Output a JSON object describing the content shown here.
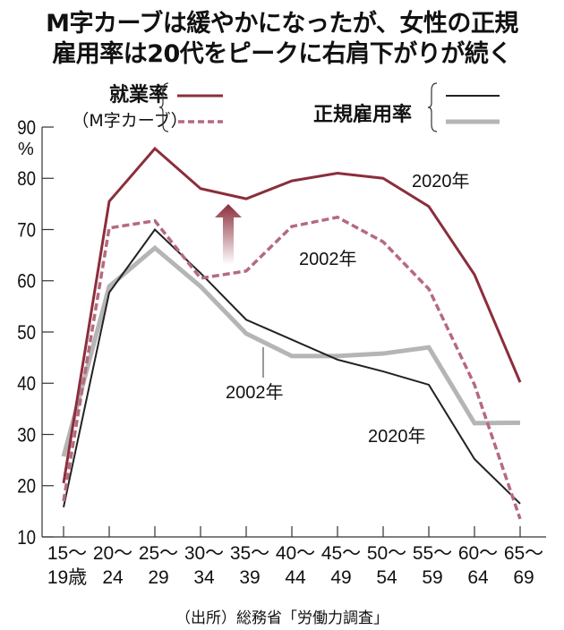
{
  "title_lines": [
    "M字カーブは緩やかになったが、女性の正規",
    "雇用率は20代をピークに右肩下がりが続く"
  ],
  "legend": {
    "employment_label": "就業率",
    "employment_sublabel": "（M字カーブ）",
    "regular_label": "正規雇用率"
  },
  "source": "（出所）総務省「労働力調査」",
  "chart_data": {
    "type": "line",
    "title": "M字カーブは緩やかになったが、女性の正規雇用率は20代をピークに右肩下がりが続く",
    "ylabel": "%",
    "ylim": [
      10,
      90
    ],
    "yticks": [
      10,
      20,
      30,
      40,
      50,
      60,
      70,
      80,
      90
    ],
    "categories": [
      [
        "15～",
        "19歳"
      ],
      [
        "20～",
        "24"
      ],
      [
        "25～",
        "29"
      ],
      [
        "30～",
        "34"
      ],
      [
        "35～",
        "39"
      ],
      [
        "40～",
        "44"
      ],
      [
        "45～",
        "49"
      ],
      [
        "50～",
        "54"
      ],
      [
        "55～",
        "59"
      ],
      [
        "60～",
        "64"
      ],
      [
        "65～",
        "69"
      ]
    ],
    "grid": false,
    "series": [
      {
        "group": "就業率",
        "name": "2020年",
        "color": "#8b2e3c",
        "style": "solid",
        "values": [
          20.5,
          75.5,
          85.8,
          78.0,
          76.0,
          79.5,
          81.0,
          80.0,
          74.5,
          61.2,
          40.2
        ]
      },
      {
        "group": "就業率",
        "name": "2002年",
        "color": "#b56a7e",
        "style": "dashed",
        "values": [
          17.0,
          70.3,
          71.7,
          60.5,
          61.9,
          70.6,
          72.4,
          67.6,
          58.4,
          39.7,
          13.5
        ]
      },
      {
        "group": "正規雇用率",
        "name": "2020年",
        "color": "#222222",
        "style": "solid-thin",
        "values": [
          15.8,
          57.7,
          70.0,
          61.5,
          52.4,
          48.5,
          44.6,
          42.3,
          39.7,
          25.2,
          16.5
        ]
      },
      {
        "group": "正規雇用率",
        "name": "2002年",
        "color": "#b5b5b5",
        "style": "solid-thick",
        "values": [
          25.7,
          58.9,
          66.4,
          58.9,
          49.7,
          45.3,
          45.3,
          45.8,
          47.0,
          32.2,
          32.3
        ]
      }
    ],
    "annotations": [
      "2020年",
      "2002年",
      "2002年",
      "2020年"
    ]
  }
}
